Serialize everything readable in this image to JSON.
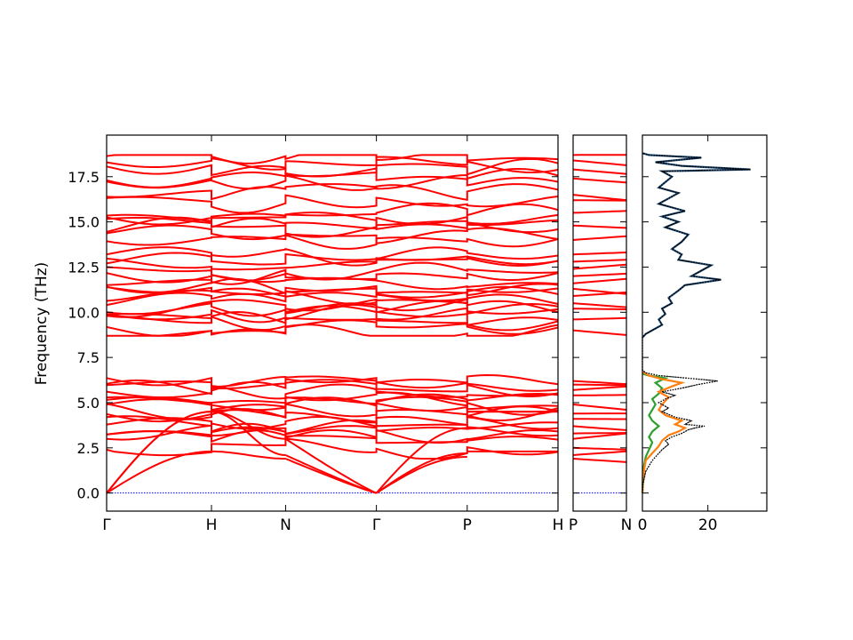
{
  "chart_data": [
    {
      "type": "line",
      "panel": "band-structure",
      "ylabel": "Frequency (THz)",
      "ylim": [
        -1.0,
        19.8
      ],
      "yticks": [
        "0.0",
        "2.5",
        "5.0",
        "7.5",
        "10.0",
        "12.5",
        "15.0",
        "17.5"
      ],
      "ytick_values": [
        0,
        2.5,
        5,
        7.5,
        10,
        12.5,
        15,
        17.5
      ],
      "xtick_labels": [
        "Γ",
        "H",
        "N",
        "Γ",
        "P",
        "H"
      ],
      "xtick_positions": [
        0,
        1.0,
        1.707,
        2.573,
        3.439,
        4.305
      ],
      "segments": [
        [
          0,
          1.0
        ],
        [
          1.0,
          1.707
        ],
        [
          1.707,
          2.573
        ],
        [
          2.573,
          3.439
        ],
        [
          3.439,
          4.305
        ]
      ],
      "band_color": "#ff0000",
      "zero_line_color": "#0000ff",
      "acoustic": [
        {
          "from": "Γ",
          "to": "H",
          "end_values": [
            2.3,
            4.5,
            4.5
          ]
        },
        {
          "from": "H",
          "to": "N",
          "end_values": [
            1.9,
            2.1,
            3.0
          ]
        },
        {
          "from": "N",
          "to": "Γ",
          "end_values": [
            0.0,
            0.0,
            0.0
          ]
        },
        {
          "from": "Γ",
          "to": "P",
          "end_values": [
            2.0,
            2.2,
            3.6
          ]
        },
        {
          "from": "P",
          "to": "H",
          "end_values": [
            2.3,
            4.5,
            4.5
          ]
        }
      ],
      "band_values_H": [
        3.4,
        4.2,
        5.0,
        5.6,
        6.1,
        8.9,
        9.7,
        10.4,
        11.3,
        12.0,
        12.9,
        14.6,
        15.2,
        16.6,
        17.6,
        18.7
      ],
      "band_values_Gamma": [
        3.2,
        4.0,
        5.3,
        5.4,
        6.6,
        9.0,
        9.9,
        10.7,
        11.5,
        12.5,
        13.6,
        14.9,
        15.6,
        16.4,
        17.8,
        18.5
      ]
    },
    {
      "type": "line",
      "panel": "band-structure-branch",
      "xtick_labels": [
        "P",
        "N"
      ],
      "ylim": [
        -1.0,
        19.8
      ],
      "band_color": "#ff0000"
    },
    {
      "type": "line",
      "panel": "dos",
      "xticks": [
        "0",
        "20"
      ],
      "xtick_values": [
        0,
        20
      ],
      "xlim": [
        0,
        38
      ],
      "ylim": [
        -1.0,
        19.8
      ],
      "series": [
        {
          "color": "#000000",
          "style": "dotted",
          "points": [
            [
              -1,
              0
            ],
            [
              0.2,
              0.5
            ],
            [
              1,
              1.2
            ],
            [
              3,
              1.8
            ],
            [
              5,
              2.2
            ],
            [
              6,
              2.4
            ],
            [
              8,
              2.7
            ],
            [
              7,
              2.9
            ],
            [
              9,
              3.1
            ],
            [
              12,
              3.3
            ],
            [
              14,
              3.5
            ],
            [
              16,
              3.6
            ],
            [
              19,
              3.7
            ],
            [
              13,
              3.8
            ],
            [
              15,
              4.0
            ],
            [
              10,
              4.2
            ],
            [
              6,
              4.5
            ],
            [
              8,
              4.7
            ],
            [
              5,
              5.0
            ],
            [
              7,
              5.2
            ],
            [
              10,
              5.4
            ],
            [
              6,
              5.6
            ],
            [
              12,
              5.8
            ],
            [
              17,
              6.0
            ],
            [
              23,
              6.2
            ],
            [
              14,
              6.35
            ],
            [
              5,
              6.5
            ],
            [
              1,
              6.65
            ],
            [
              0,
              6.8
            ],
            [
              0,
              8.6
            ],
            [
              1,
              8.8
            ],
            [
              3,
              9.0
            ],
            [
              6,
              9.3
            ],
            [
              5,
              9.6
            ],
            [
              7,
              9.9
            ],
            [
              6,
              10.2
            ],
            [
              9,
              10.5
            ],
            [
              8,
              10.8
            ],
            [
              11,
              11.2
            ],
            [
              13,
              11.5
            ],
            [
              24,
              11.8
            ],
            [
              15,
              12.0
            ],
            [
              18,
              12.3
            ],
            [
              21,
              12.6
            ],
            [
              11,
              12.9
            ],
            [
              12,
              13.2
            ],
            [
              9,
              13.5
            ],
            [
              12,
              13.9
            ],
            [
              14,
              14.3
            ],
            [
              7,
              14.7
            ],
            [
              11,
              15.0
            ],
            [
              6,
              15.3
            ],
            [
              13,
              15.6
            ],
            [
              5,
              16.0
            ],
            [
              8,
              16.3
            ],
            [
              11,
              16.6
            ],
            [
              5,
              16.9
            ],
            [
              7,
              17.2
            ],
            [
              9,
              17.5
            ],
            [
              6,
              17.8
            ],
            [
              33,
              17.9
            ],
            [
              12,
              18.1
            ],
            [
              4,
              18.3
            ],
            [
              18,
              18.55
            ],
            [
              2,
              18.7
            ],
            [
              0,
              18.8
            ]
          ]
        },
        {
          "color": "#1f4e79",
          "style": "solid",
          "points": [
            [
              0,
              8.6
            ],
            [
              1,
              8.8
            ],
            [
              3,
              9.0
            ],
            [
              6,
              9.3
            ],
            [
              5,
              9.6
            ],
            [
              7,
              9.9
            ],
            [
              6,
              10.2
            ],
            [
              9,
              10.5
            ],
            [
              8,
              10.8
            ],
            [
              11,
              11.2
            ],
            [
              13,
              11.5
            ],
            [
              24,
              11.8
            ],
            [
              15,
              12.0
            ],
            [
              18,
              12.3
            ],
            [
              21,
              12.6
            ],
            [
              11,
              12.9
            ],
            [
              12,
              13.2
            ],
            [
              9,
              13.5
            ],
            [
              12,
              13.9
            ],
            [
              14,
              14.3
            ],
            [
              7,
              14.7
            ],
            [
              11,
              15.0
            ],
            [
              6,
              15.3
            ],
            [
              13,
              15.6
            ],
            [
              5,
              16.0
            ],
            [
              8,
              16.3
            ],
            [
              11,
              16.6
            ],
            [
              5,
              16.9
            ],
            [
              7,
              17.2
            ],
            [
              9,
              17.5
            ],
            [
              6,
              17.8
            ],
            [
              33,
              17.9
            ],
            [
              12,
              18.1
            ],
            [
              4,
              18.3
            ],
            [
              18,
              18.55
            ],
            [
              2,
              18.7
            ],
            [
              0,
              18.8
            ]
          ]
        },
        {
          "color": "#ff7f0e",
          "style": "solid",
          "points": [
            [
              0,
              0
            ],
            [
              0.3,
              1.0
            ],
            [
              1,
              1.8
            ],
            [
              3,
              2.2
            ],
            [
              5,
              2.6
            ],
            [
              6,
              2.9
            ],
            [
              8,
              3.2
            ],
            [
              11,
              3.4
            ],
            [
              13,
              3.6
            ],
            [
              10,
              3.8
            ],
            [
              12,
              4.0
            ],
            [
              7,
              4.3
            ],
            [
              5,
              4.6
            ],
            [
              6,
              4.9
            ],
            [
              8,
              5.3
            ],
            [
              5,
              5.6
            ],
            [
              9,
              5.9
            ],
            [
              12,
              6.1
            ],
            [
              6,
              6.3
            ],
            [
              2,
              6.5
            ],
            [
              0,
              6.7
            ]
          ]
        },
        {
          "color": "#2ca02c",
          "style": "solid",
          "points": [
            [
              0,
              0
            ],
            [
              0.2,
              1.2
            ],
            [
              1,
              2.0
            ],
            [
              2,
              2.4
            ],
            [
              3,
              2.8
            ],
            [
              2,
              3.1
            ],
            [
              3,
              3.4
            ],
            [
              5,
              3.7
            ],
            [
              3,
              4.0
            ],
            [
              2,
              4.3
            ],
            [
              3,
              4.6
            ],
            [
              4,
              4.9
            ],
            [
              3,
              5.2
            ],
            [
              5,
              5.5
            ],
            [
              6,
              5.8
            ],
            [
              4,
              6.1
            ],
            [
              7,
              6.35
            ],
            [
              2,
              6.5
            ],
            [
              0,
              6.6
            ]
          ]
        }
      ]
    }
  ]
}
